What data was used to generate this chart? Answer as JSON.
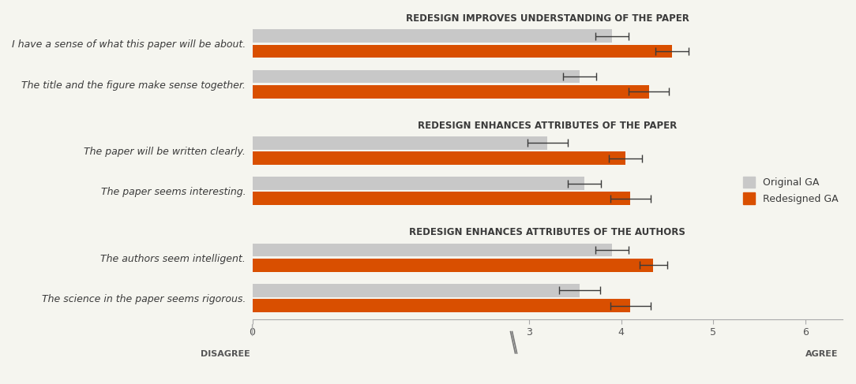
{
  "section_titles": [
    "REDESIGN IMPROVES UNDERSTANDING OF THE PAPER",
    "REDESIGN ENHANCES ATTRIBUTES OF THE PAPER",
    "REDESIGN ENHANCES ATTRIBUTES OF THE AUTHORS"
  ],
  "categories": [
    "I have a sense of what this paper will be about.",
    "The title and the figure make sense together.",
    "The paper will be written clearly.",
    "The paper seems interesting.",
    "The authors seem intelligent.",
    "The science in the paper seems rigorous."
  ],
  "original_values": [
    3.9,
    3.55,
    3.2,
    3.6,
    3.9,
    3.55
  ],
  "redesigned_values": [
    4.55,
    4.3,
    4.05,
    4.1,
    4.35,
    4.1
  ],
  "original_errors": [
    0.18,
    0.18,
    0.22,
    0.18,
    0.18,
    0.22
  ],
  "redesigned_errors": [
    0.18,
    0.22,
    0.18,
    0.22,
    0.15,
    0.22
  ],
  "original_color": "#c8c8c8",
  "redesigned_color": "#d94f00",
  "bar_height": 0.28,
  "xlim": [
    0,
    6.4
  ],
  "xticks": [
    0,
    3,
    4,
    5,
    6
  ],
  "xlabel_left": "DISAGREE",
  "xlabel_right": "AGREE",
  "legend_labels": [
    "Original GA",
    "Redesigned GA"
  ],
  "background_color": "#f5f5ef",
  "figure_width": 10.84,
  "figure_height": 4.87
}
